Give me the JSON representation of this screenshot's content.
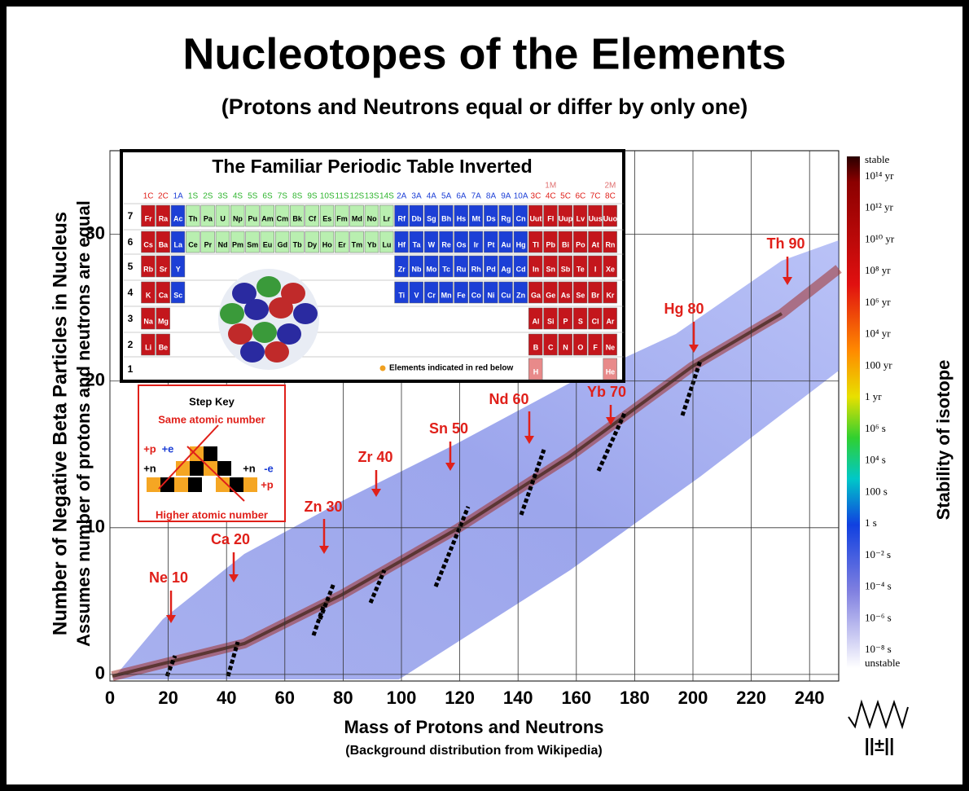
{
  "chart_data": {
    "type": "heatmap",
    "title": "Nucleotopes of the Elements",
    "subtitle": "(Protons and Neutrons equal or differ by only one)",
    "x_label": "Mass of Protons and Neutrons",
    "x_sublabel": "(Background distribution from Wikipedia)",
    "y_label": "Number of Negative Beta Particles in Nucleus",
    "y_sublabel": "Assumes number of protons and neutrons are equal",
    "xlim": [
      0,
      250
    ],
    "xticks": [
      0,
      20,
      40,
      60,
      80,
      100,
      120,
      140,
      160,
      180,
      200,
      220,
      240
    ],
    "ylim": [
      -0.45,
      35.7
    ],
    "yticks": [
      0,
      10,
      20,
      30
    ],
    "grid": true,
    "annotations": [
      "Ne 10",
      "Ca 20",
      "Zn 30",
      "Zr 40",
      "Sn 50",
      "Nd 60",
      "Yb 70",
      "Hg 80",
      "Th 90"
    ],
    "colorbar": {
      "label": "Stability of isotope",
      "ticks": [
        "stable",
        "10¹⁴ yr",
        "10¹² yr",
        "10¹⁰ yr",
        "10⁸ yr",
        "10⁶ yr",
        "10⁴ yr",
        "100 yr",
        "1 yr",
        "10⁶ s",
        "10⁴ s",
        "100 s",
        "1 s",
        "10⁻² s",
        "10⁻⁴ s",
        "10⁻⁶ s",
        "10⁻⁸ s",
        "unstable"
      ]
    }
  },
  "periodic_table": {
    "title": "The Familiar Periodic Table Inverted",
    "top_headers": [
      "1M",
      "2M"
    ],
    "headers": [
      "1C",
      "2C",
      "1A",
      "1S",
      "2S",
      "3S",
      "4S",
      "5S",
      "6S",
      "7S",
      "8S",
      "9S",
      "10S",
      "11S",
      "12S",
      "13S",
      "14S",
      "2A",
      "3A",
      "4A",
      "5A",
      "6A",
      "7A",
      "8A",
      "9A",
      "10A",
      "3C",
      "4C",
      "5C",
      "6C",
      "7C",
      "8C"
    ],
    "rows": [
      {
        "label": "7",
        "cells": [
          "Fr",
          "Ra",
          "Ac",
          "Th",
          "Pa",
          "U",
          "Np",
          "Pu",
          "Am",
          "Cm",
          "Bk",
          "Cf",
          "Es",
          "Fm",
          "Md",
          "No",
          "Lr",
          "Rf",
          "Db",
          "Sg",
          "Bh",
          "Hs",
          "Mt",
          "Ds",
          "Rg",
          "Cn",
          "Uut",
          "Fl",
          "Uup",
          "Lv",
          "Uus",
          "Uuo"
        ]
      },
      {
        "label": "6",
        "cells": [
          "Cs",
          "Ba",
          "La",
          "Ce",
          "Pr",
          "Nd",
          "Pm",
          "Sm",
          "Eu",
          "Gd",
          "Tb",
          "Dy",
          "Ho",
          "Er",
          "Tm",
          "Yb",
          "Lu",
          "Hf",
          "Ta",
          "W",
          "Re",
          "Os",
          "Ir",
          "Pt",
          "Au",
          "Hg",
          "Tl",
          "Pb",
          "Bi",
          "Po",
          "At",
          "Rn"
        ]
      },
      {
        "label": "5",
        "cells": [
          "Rb",
          "Sr",
          "Y",
          null,
          null,
          null,
          null,
          null,
          null,
          null,
          null,
          null,
          null,
          null,
          null,
          null,
          null,
          "Zr",
          "Nb",
          "Mo",
          "Tc",
          "Ru",
          "Rh",
          "Pd",
          "Ag",
          "Cd",
          "In",
          "Sn",
          "Sb",
          "Te",
          "I",
          "Xe"
        ]
      },
      {
        "label": "4",
        "cells": [
          "K",
          "Ca",
          "Sc",
          null,
          null,
          null,
          null,
          null,
          null,
          null,
          null,
          null,
          null,
          null,
          null,
          null,
          null,
          "Ti",
          "V",
          "Cr",
          "Mn",
          "Fe",
          "Co",
          "Ni",
          "Cu",
          "Zn",
          "Ga",
          "Ge",
          "As",
          "Se",
          "Br",
          "Kr"
        ]
      },
      {
        "label": "3",
        "cells": [
          "Na",
          "Mg",
          null,
          null,
          null,
          null,
          null,
          null,
          null,
          null,
          null,
          null,
          null,
          null,
          null,
          null,
          null,
          null,
          null,
          null,
          null,
          null,
          null,
          null,
          null,
          null,
          "Al",
          "Si",
          "P",
          "S",
          "Cl",
          "Ar"
        ]
      },
      {
        "label": "2",
        "cells": [
          "Li",
          "Be",
          null,
          null,
          null,
          null,
          null,
          null,
          null,
          null,
          null,
          null,
          null,
          null,
          null,
          null,
          null,
          null,
          null,
          null,
          null,
          null,
          null,
          null,
          null,
          null,
          "B",
          "C",
          "N",
          "O",
          "F",
          "Ne"
        ]
      },
      {
        "label": "1",
        "cells": [
          null,
          null,
          null,
          null,
          null,
          null,
          null,
          null,
          null,
          null,
          null,
          null,
          null,
          null,
          null,
          null,
          null,
          null,
          null,
          null,
          null,
          null,
          null,
          null,
          null,
          null,
          "H",
          null,
          null,
          null,
          null,
          "He"
        ]
      }
    ],
    "note": "Elements indicated in red below"
  },
  "step_key": {
    "title": "Step Key",
    "top": "Same atomic number",
    "bottom": "Higher atomic number",
    "steps": [
      "+p",
      "+e",
      "+n",
      "+n",
      "-e",
      "+p"
    ]
  },
  "logo_text": "||±||"
}
